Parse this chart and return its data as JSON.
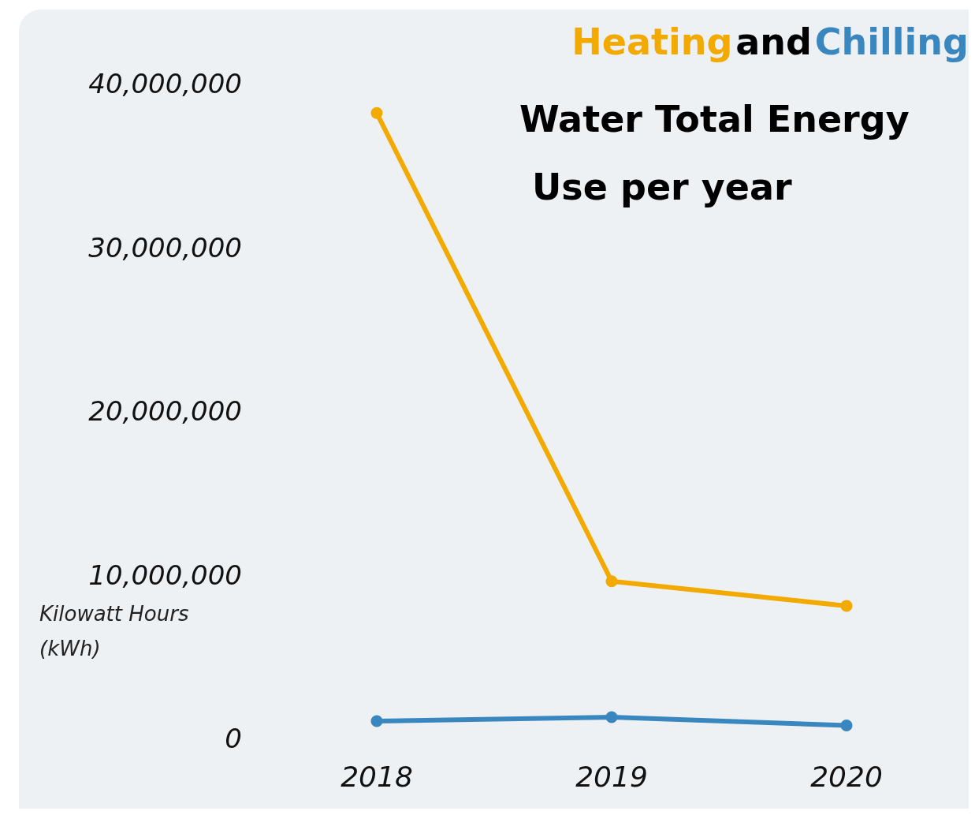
{
  "chart_data": {
    "type": "line",
    "title": "Water Total Energy Use per year",
    "annotations": [
      "and"
    ],
    "ylabel": "Kilowatt Hours (kWh)",
    "categories": [
      "2018",
      "2019",
      "2020"
    ],
    "series": [
      {
        "name": "Heating",
        "color": "#f2a900",
        "values": [
          38200000,
          9600000,
          8100000
        ]
      },
      {
        "name": "Chilling",
        "color": "#3a87c0",
        "values": [
          1060000,
          1300000,
          800000
        ]
      }
    ],
    "ylim": [
      0,
      40000000
    ],
    "yticks": [
      0,
      {
        "value": 10000000,
        "label": "10,000,000"
      },
      {
        "value": 20000000,
        "label": "20,000,000"
      },
      {
        "value": 30000000,
        "label": "30,000,000"
      },
      {
        "value": 40000000,
        "label": "40,000,000"
      }
    ],
    "grid": false,
    "legend": false,
    "marker": "circle",
    "line_style": "solid"
  }
}
